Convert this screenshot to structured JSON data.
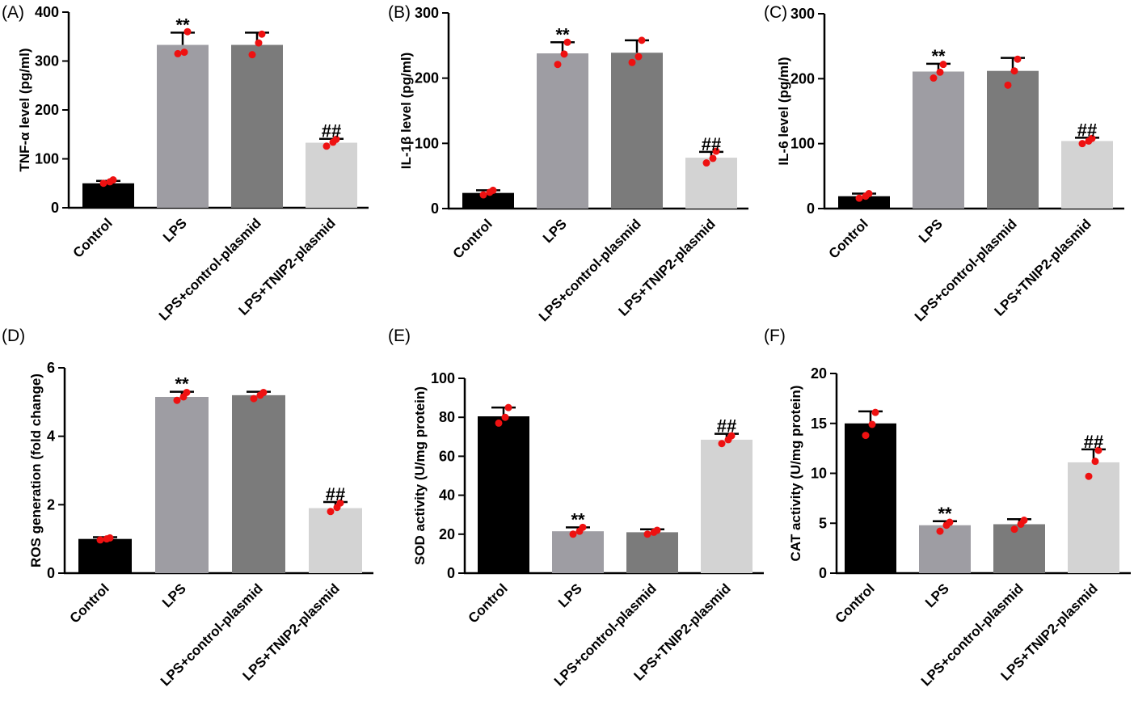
{
  "colors": {
    "bar_colors": [
      "#000000",
      "#9e9da3",
      "#7b7b7b",
      "#d3d3d3"
    ],
    "dot_color": "#ee1111",
    "axis_color": "#000000"
  },
  "chart_data": [
    {
      "type": "bar",
      "panel_label": "(A)",
      "categories": [
        "Control",
        "LPS",
        "LPS+control-plasmid",
        "LPS+TNIP2-plasmid"
      ],
      "values": [
        50,
        333,
        333,
        133
      ],
      "error": [
        5,
        25,
        25,
        8
      ],
      "points": [
        [
          50,
          53,
          57
        ],
        [
          315,
          318,
          360
        ],
        [
          313,
          337,
          355
        ],
        [
          126,
          134,
          140
        ]
      ],
      "annotations": [
        "",
        "**",
        "",
        "##"
      ],
      "ylabel": "TNF-α level (pg/ml)",
      "ylim": [
        0,
        400
      ],
      "yticks": [
        0,
        100,
        200,
        300,
        400
      ],
      "grid": false
    },
    {
      "type": "bar",
      "panel_label": "(B)",
      "categories": [
        "Control",
        "LPS",
        "LPS+control-plasmid",
        "LPS+TNIP2-plasmid"
      ],
      "values": [
        24,
        238,
        239,
        78
      ],
      "error": [
        4,
        17,
        19,
        9
      ],
      "points": [
        [
          21,
          25,
          28
        ],
        [
          221,
          237,
          255
        ],
        [
          224,
          233,
          258
        ],
        [
          70,
          77,
          88
        ]
      ],
      "annotations": [
        "",
        "**",
        "",
        "##"
      ],
      "ylabel": "IL-1β level (pg/ml)",
      "ylim": [
        0,
        300
      ],
      "yticks": [
        0,
        100,
        200,
        300
      ],
      "grid": false
    },
    {
      "type": "bar",
      "panel_label": "(C)",
      "categories": [
        "Control",
        "LPS",
        "LPS+control-plasmid",
        "LPS+TNIP2-plasmid"
      ],
      "values": [
        19,
        211,
        212,
        104
      ],
      "error": [
        4,
        12,
        20,
        5
      ],
      "points": [
        [
          16,
          19,
          23
        ],
        [
          201,
          210,
          222
        ],
        [
          190,
          212,
          230
        ],
        [
          100,
          104,
          108
        ]
      ],
      "annotations": [
        "",
        "**",
        "",
        "##"
      ],
      "ylabel": "IL-6 level (pg/ml)",
      "ylim": [
        0,
        300
      ],
      "yticks": [
        0,
        100,
        200,
        300
      ],
      "grid": false
    },
    {
      "type": "bar",
      "panel_label": "(D)",
      "categories": [
        "Control",
        "LPS",
        "LPS+control-plasmid",
        "LPS+TNIP2-plasmid"
      ],
      "values": [
        1.0,
        5.15,
        5.2,
        1.9
      ],
      "error": [
        0.05,
        0.15,
        0.1,
        0.18
      ],
      "points": [
        [
          0.97,
          1.0,
          1.03
        ],
        [
          5.05,
          5.15,
          5.28
        ],
        [
          5.1,
          5.2,
          5.28
        ],
        [
          1.8,
          1.92,
          2.05
        ]
      ],
      "annotations": [
        "",
        "**",
        "",
        "##"
      ],
      "ylabel": "ROS generation (fold change)",
      "ylim": [
        0,
        6
      ],
      "yticks": [
        0,
        2,
        4,
        6
      ],
      "grid": false
    },
    {
      "type": "bar",
      "panel_label": "(E)",
      "categories": [
        "Control",
        "LPS",
        "LPS+control-plasmid",
        "LPS+TNIP2-plasmid"
      ],
      "values": [
        80.5,
        21.5,
        21,
        68.5
      ],
      "error": [
        4.5,
        2,
        1.5,
        3
      ],
      "points": [
        [
          77,
          80,
          85
        ],
        [
          20,
          21.5,
          23.5
        ],
        [
          20,
          21,
          22
        ],
        [
          66.5,
          68.5,
          70.5
        ]
      ],
      "annotations": [
        "",
        "**",
        "",
        "##"
      ],
      "ylabel": "SOD activity (U/mg protein)",
      "ylim": [
        0,
        100
      ],
      "yticks": [
        0,
        20,
        40,
        60,
        80,
        100
      ],
      "grid": false
    },
    {
      "type": "bar",
      "panel_label": "(F)",
      "categories": [
        "Control",
        "LPS",
        "LPS+control-plasmid",
        "LPS+TNIP2-plasmid"
      ],
      "values": [
        15,
        4.8,
        4.9,
        11.1
      ],
      "error": [
        1.2,
        0.4,
        0.5,
        1.3
      ],
      "points": [
        [
          13.8,
          14.9,
          16.1
        ],
        [
          4.2,
          4.8,
          5.1
        ],
        [
          4.4,
          4.9,
          5.3
        ],
        [
          9.7,
          11.2,
          12.3
        ]
      ],
      "annotations": [
        "",
        "**",
        "",
        "##"
      ],
      "ylabel": "CAT activity (U/mg protein)",
      "ylim": [
        0,
        20
      ],
      "yticks": [
        0,
        5,
        10,
        15,
        20
      ],
      "grid": false
    }
  ]
}
